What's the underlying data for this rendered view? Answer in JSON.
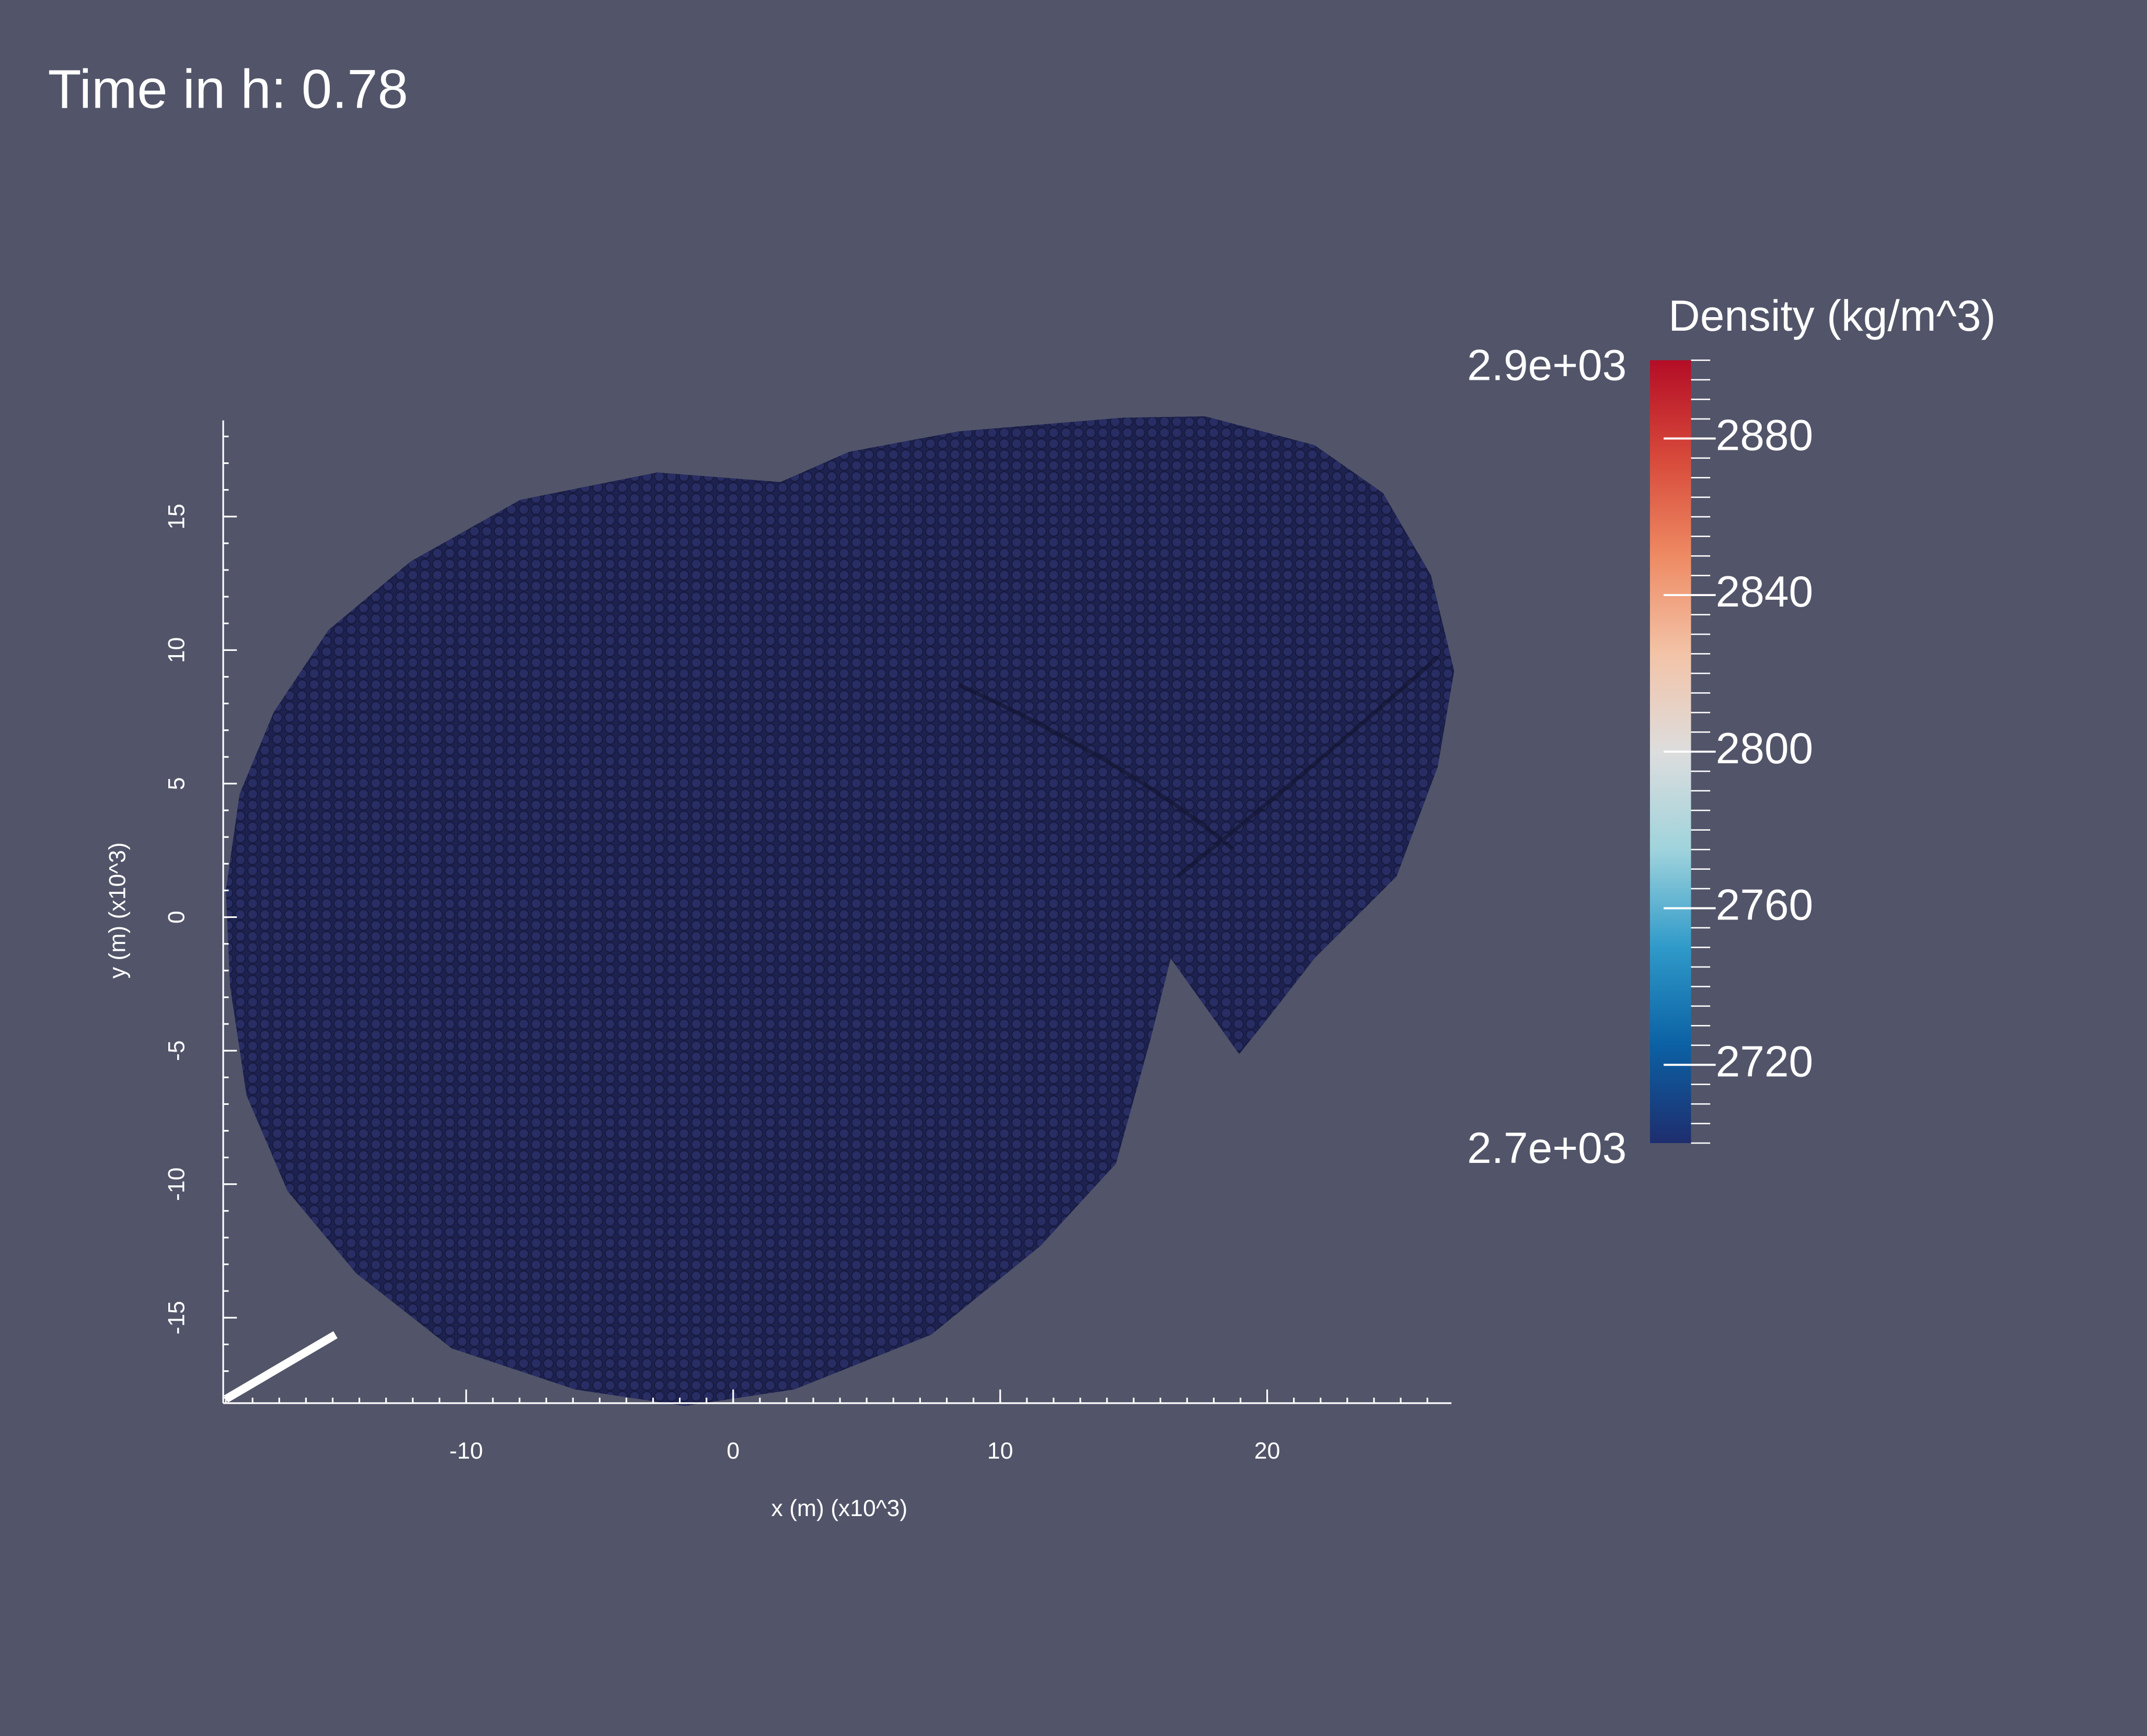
{
  "chart_data": {
    "type": "particle-plot",
    "title": "Time in h: 0.78",
    "x_label": "x (m) (x10^3)",
    "y_label": "y (m) (x10^3)",
    "xlim": [
      -19.1,
      26.9
    ],
    "ylim": [
      -18.2,
      18.6
    ],
    "xticks": [
      -10,
      0,
      10,
      20
    ],
    "yticks": [
      -15,
      -10,
      -5,
      0,
      5,
      10,
      15
    ],
    "particle_color": "#1e2250",
    "colorbar": {
      "title": "Density (kg/m^3)",
      "clim": [
        2700,
        2900
      ],
      "range_labels": [
        {
          "value": 2900,
          "label": "2.9e+03"
        },
        {
          "value": 2700,
          "label": "2.7e+03"
        }
      ],
      "ticks": [
        2720,
        2760,
        2800,
        2840,
        2880
      ],
      "colormap": [
        "#1e2d6e",
        "#0b61a4",
        "#2f9ac9",
        "#9fd3dc",
        "#dddddd",
        "#f3c3a7",
        "#ee8a63",
        "#d7493a",
        "#b40d26"
      ]
    }
  }
}
